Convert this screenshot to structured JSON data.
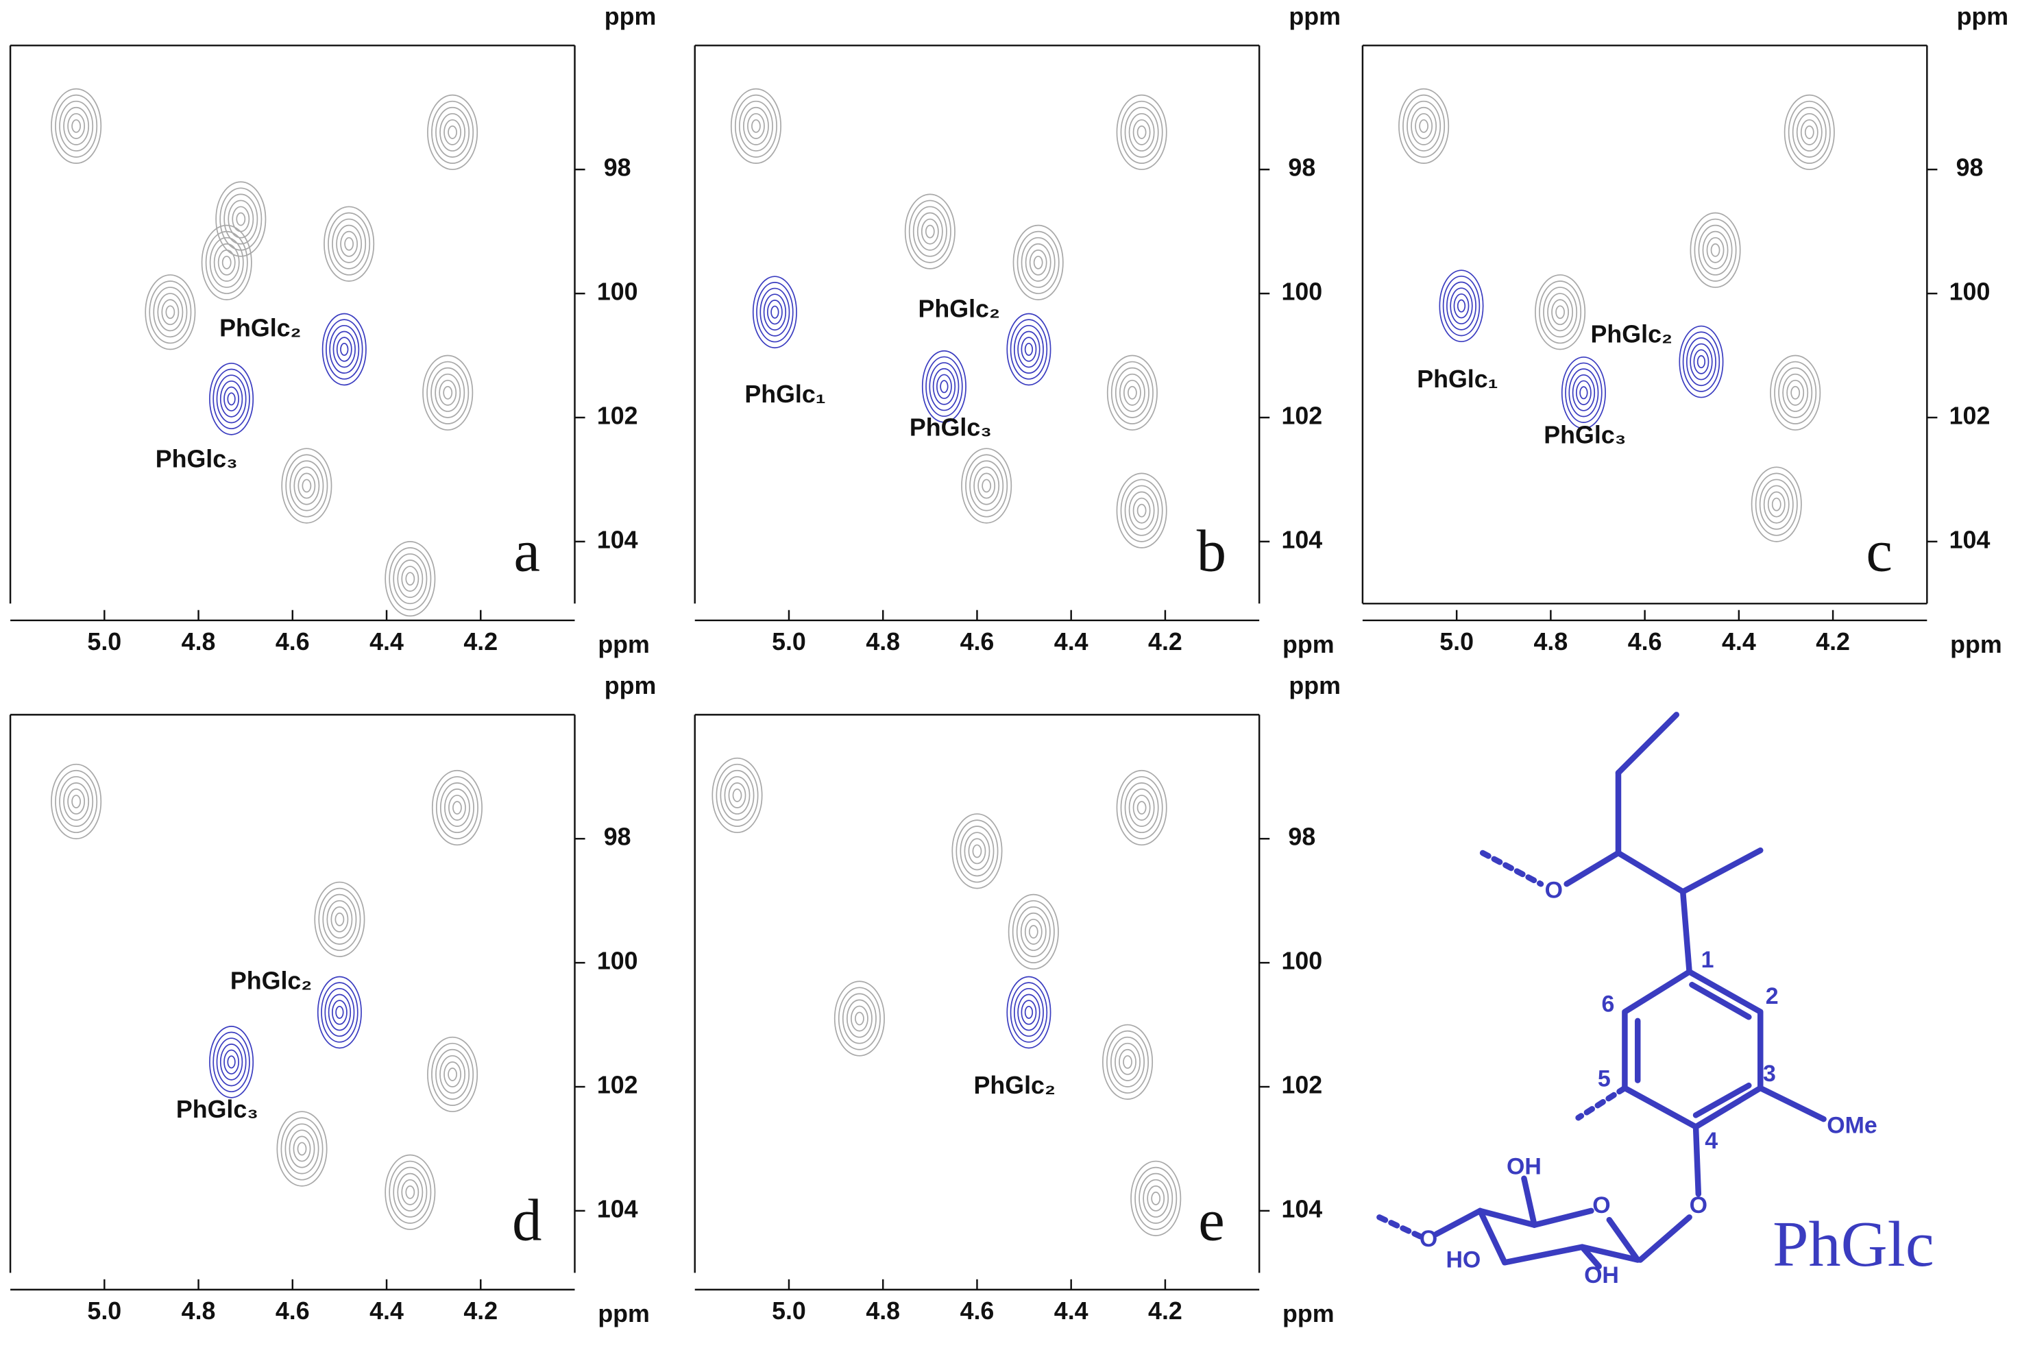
{
  "chart_data": [
    {
      "type": "contour",
      "panel_label": "a",
      "frame": "open",
      "xlabel": "ppm",
      "ylabel": "ppm",
      "xlim": [
        5.2,
        4.0
      ],
      "ylim": [
        96,
        105
      ],
      "xticks": [
        {
          "value": 5,
          "label": "5.0"
        },
        4.8,
        4.6,
        4.4,
        4.2
      ],
      "yticks": [
        98,
        100,
        102,
        104
      ],
      "peaks": [
        {
          "label": "PhGlc₂",
          "x": 4.49,
          "y": 100.9
        },
        {
          "label": "PhGlc₃",
          "x": 4.73,
          "y": 101.7
        }
      ],
      "background_peaks": [
        {
          "x": 5.06,
          "y": 97.3
        },
        {
          "x": 4.26,
          "y": 97.4
        },
        {
          "x": 4.71,
          "y": 98.8
        },
        {
          "x": 4.74,
          "y": 99.5
        },
        {
          "x": 4.48,
          "y": 99.2
        },
        {
          "x": 4.27,
          "y": 101.6
        },
        {
          "x": 4.86,
          "y": 100.3
        },
        {
          "x": 4.57,
          "y": 103.1
        },
        {
          "x": 4.35,
          "y": 104.6
        }
      ]
    },
    {
      "type": "contour",
      "panel_label": "b",
      "frame": "open",
      "xlabel": "ppm",
      "ylabel": "ppm",
      "xlim": [
        5.2,
        4.0
      ],
      "ylim": [
        96,
        105
      ],
      "xticks": [
        {
          "value": 5,
          "label": "5.0"
        },
        4.8,
        4.6,
        4.4,
        4.2
      ],
      "yticks": [
        98,
        100,
        102,
        104
      ],
      "peaks": [
        {
          "label": "PhGlc₁",
          "x": 5.03,
          "y": 100.3
        },
        {
          "label": "PhGlc₂",
          "x": 4.49,
          "y": 100.9
        },
        {
          "label": "PhGlc₃",
          "x": 4.67,
          "y": 101.5
        }
      ],
      "background_peaks": [
        {
          "x": 5.07,
          "y": 97.3
        },
        {
          "x": 4.25,
          "y": 97.4
        },
        {
          "x": 4.7,
          "y": 99.0
        },
        {
          "x": 4.47,
          "y": 99.5
        },
        {
          "x": 4.27,
          "y": 101.6
        },
        {
          "x": 4.58,
          "y": 103.1
        },
        {
          "x": 4.25,
          "y": 103.5
        }
      ]
    },
    {
      "type": "contour",
      "panel_label": "c",
      "frame": "full",
      "xlabel": "ppm",
      "ylabel": "ppm",
      "xlim": [
        5.2,
        4.0
      ],
      "ylim": [
        96,
        105
      ],
      "xticks": [
        {
          "value": 5,
          "label": "5.0"
        },
        4.8,
        4.6,
        4.4,
        4.2
      ],
      "yticks": [
        98,
        100,
        102,
        104
      ],
      "peaks": [
        {
          "label": "PhGlc₁",
          "x": 4.99,
          "y": 100.2
        },
        {
          "label": "PhGlc₂",
          "x": 4.48,
          "y": 101.1
        },
        {
          "label": "PhGlc₃",
          "x": 4.73,
          "y": 101.6
        }
      ],
      "background_peaks": [
        {
          "x": 5.07,
          "y": 97.3
        },
        {
          "x": 4.25,
          "y": 97.4
        },
        {
          "x": 4.45,
          "y": 99.3
        },
        {
          "x": 4.28,
          "y": 101.6
        },
        {
          "x": 4.32,
          "y": 103.4
        },
        {
          "x": 4.78,
          "y": 100.3
        }
      ]
    },
    {
      "type": "contour",
      "panel_label": "d",
      "frame": "open",
      "xlabel": "ppm",
      "ylabel": "ppm",
      "xlim": [
        5.2,
        4.0
      ],
      "ylim": [
        96,
        105
      ],
      "xticks": [
        {
          "value": 5,
          "label": "5.0"
        },
        4.8,
        4.6,
        4.4,
        4.2
      ],
      "yticks": [
        98,
        100,
        102,
        104
      ],
      "peaks": [
        {
          "label": "PhGlc₂",
          "x": 4.5,
          "y": 100.8
        },
        {
          "label": "PhGlc₃",
          "x": 4.73,
          "y": 101.6
        }
      ],
      "background_peaks": [
        {
          "x": 5.06,
          "y": 97.4
        },
        {
          "x": 4.25,
          "y": 97.5
        },
        {
          "x": 4.5,
          "y": 99.3
        },
        {
          "x": 4.26,
          "y": 101.8
        },
        {
          "x": 4.58,
          "y": 103.0
        },
        {
          "x": 4.35,
          "y": 103.7
        }
      ]
    },
    {
      "type": "contour",
      "panel_label": "e",
      "frame": "open",
      "xlabel": "ppm",
      "ylabel": "ppm",
      "xlim": [
        5.2,
        4.0
      ],
      "ylim": [
        96,
        105
      ],
      "xticks": [
        {
          "value": 5,
          "label": "5.0"
        },
        4.8,
        4.6,
        4.4,
        4.2
      ],
      "yticks": [
        98,
        100,
        102,
        104
      ],
      "peaks": [
        {
          "label": "PhGlc₂",
          "x": 4.49,
          "y": 100.8
        }
      ],
      "background_peaks": [
        {
          "x": 5.11,
          "y": 97.3
        },
        {
          "x": 4.25,
          "y": 97.5
        },
        {
          "x": 4.48,
          "y": 99.5
        },
        {
          "x": 4.85,
          "y": 100.9
        },
        {
          "x": 4.28,
          "y": 101.6
        },
        {
          "x": 4.22,
          "y": 103.8
        },
        {
          "x": 4.6,
          "y": 98.2
        }
      ]
    }
  ],
  "structure": {
    "title": "PhGlc",
    "atom_numbers": [
      "1",
      "2",
      "3",
      "4",
      "5",
      "6"
    ],
    "groups": [
      "OMe",
      "OH",
      "HO",
      "OH"
    ],
    "oxygens": [
      "O",
      "O",
      "O",
      "O"
    ]
  }
}
